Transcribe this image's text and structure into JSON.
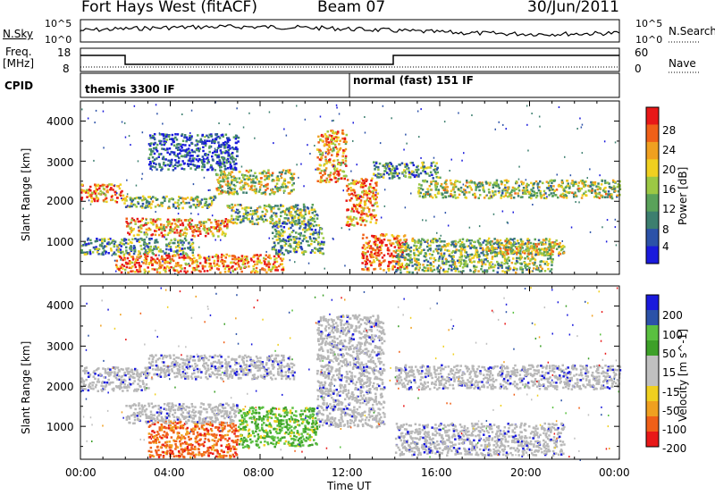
{
  "header": {
    "station": "Fort Hays West (fitACF)",
    "beam": "Beam 07",
    "date": "30/Jun/2011"
  },
  "panels": {
    "nsky": {
      "label": "N.Sky",
      "ticks": [
        "10^5",
        "10^0"
      ],
      "right_label": "N.Search",
      "right_ticks": [
        "10^5",
        "10^0"
      ]
    },
    "freq": {
      "label_line1": "Freq.",
      "label_line2": "[MHz]",
      "ticks": [
        "18",
        "8"
      ],
      "right_label": "Nave",
      "right_ticks": [
        "60",
        "0"
      ]
    },
    "cpid": {
      "label": "CPID",
      "modes": [
        "themis 3300 IF",
        "normal (fast) 151 IF"
      ]
    }
  },
  "colors": {
    "power": [
      "#1a1adc",
      "#2c52a8",
      "#3d7f6f",
      "#5aa25a",
      "#9cc844",
      "#f0d020",
      "#f0a020",
      "#f06018",
      "#e81818"
    ],
    "velocity": [
      "#e81818",
      "#f06018",
      "#f0a020",
      "#f0d020",
      "#c0c0c0",
      "#c0c0c0",
      "#3da028",
      "#5ac040",
      "#2c52a8",
      "#1a1adc"
    ],
    "ground_scatter": "#b8b8b8"
  },
  "chart_data": {
    "type": "heatmap",
    "xlabel": "Time UT",
    "x_ticks": [
      "00:00",
      "04:00",
      "08:00",
      "12:00",
      "16:00",
      "20:00",
      "00:00"
    ],
    "x_range_hours": [
      0,
      24
    ],
    "y_ticks": [
      "1000",
      "2000",
      "3000",
      "4000"
    ],
    "y_range_km": [
      180,
      4500
    ],
    "power_panel": {
      "ylabel": "Slant Range [km]",
      "colorbar_label": "Power [dB]",
      "colorbar_ticks": [
        "4",
        "8",
        "12",
        "16",
        "20",
        "24",
        "28"
      ],
      "scatter_bands": [
        {
          "t0": 0.0,
          "t1": 1.9,
          "r0": 2000,
          "r1": 2450,
          "level": 0.78
        },
        {
          "t0": 1.9,
          "t1": 6.0,
          "r0": 1850,
          "r1": 2150,
          "level": 0.45
        },
        {
          "t0": 6.0,
          "t1": 9.5,
          "r0": 2200,
          "r1": 2800,
          "level": 0.55
        },
        {
          "t0": 2.0,
          "t1": 6.5,
          "r0": 1150,
          "r1": 1600,
          "level": 0.72
        },
        {
          "t0": 6.5,
          "t1": 10.5,
          "r0": 1450,
          "r1": 1950,
          "level": 0.45
        },
        {
          "t0": 0.0,
          "t1": 5.0,
          "r0": 700,
          "r1": 1100,
          "level": 0.35
        },
        {
          "t0": 1.5,
          "t1": 9.0,
          "r0": 250,
          "r1": 700,
          "level": 0.8
        },
        {
          "t0": 8.5,
          "t1": 10.8,
          "r0": 700,
          "r1": 1500,
          "level": 0.35
        },
        {
          "t0": 3.0,
          "t1": 7.0,
          "r0": 2800,
          "r1": 3700,
          "level": 0.15
        },
        {
          "t0": 10.5,
          "t1": 11.8,
          "r0": 2500,
          "r1": 3800,
          "level": 0.7
        },
        {
          "t0": 11.8,
          "t1": 13.2,
          "r0": 1400,
          "r1": 2600,
          "level": 0.75
        },
        {
          "t0": 12.5,
          "t1": 14.5,
          "r0": 300,
          "r1": 1200,
          "level": 0.85
        },
        {
          "t0": 13.0,
          "t1": 16.0,
          "r0": 2600,
          "r1": 3000,
          "level": 0.35
        },
        {
          "t0": 15.0,
          "t1": 24.0,
          "r0": 2100,
          "r1": 2550,
          "level": 0.5
        },
        {
          "t0": 14.0,
          "t1": 21.0,
          "r0": 250,
          "r1": 1100,
          "level": 0.45
        },
        {
          "t0": 18.0,
          "t1": 21.5,
          "r0": 700,
          "r1": 1050,
          "level": 0.6
        }
      ]
    },
    "velocity_panel": {
      "ylabel": "Slant Range [km]",
      "colorbar_label": "Velocity [m s^-1]",
      "colorbar_ticks": [
        "200",
        "100",
        "50",
        "15",
        "-15",
        "-50",
        "-100",
        "-200"
      ],
      "scatter_bands": [
        {
          "t0": 0.0,
          "t1": 3.0,
          "r0": 1900,
          "r1": 2500,
          "v": 0
        },
        {
          "t0": 3.0,
          "t1": 9.5,
          "r0": 2200,
          "r1": 2800,
          "v": 0
        },
        {
          "t0": 3.0,
          "t1": 7.0,
          "r0": 250,
          "r1": 1150,
          "v": -110
        },
        {
          "t0": 7.0,
          "t1": 10.5,
          "r0": 500,
          "r1": 1500,
          "v": 40
        },
        {
          "t0": 2.0,
          "t1": 7.0,
          "r0": 1100,
          "r1": 1600,
          "v": 0
        },
        {
          "t0": 10.5,
          "t1": 13.5,
          "r0": 1000,
          "r1": 3800,
          "v": 0
        },
        {
          "t0": 14.0,
          "t1": 24.0,
          "r0": 1950,
          "r1": 2550,
          "v": 0
        },
        {
          "t0": 14.0,
          "t1": 21.5,
          "r0": 300,
          "r1": 1100,
          "v": 0
        }
      ]
    }
  }
}
